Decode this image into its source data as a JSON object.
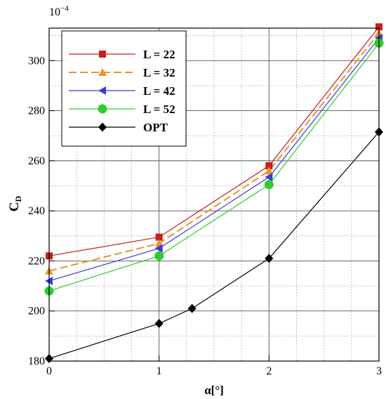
{
  "chart_data": {
    "type": "line",
    "xlabel": "α[°]",
    "ylabel_main": "C",
    "ylabel_sub": "D",
    "y_multiplier": "10",
    "y_multiplier_exp": "−4",
    "xlim": [
      0,
      3
    ],
    "ylim": [
      180,
      313
    ],
    "x_ticks": [
      0,
      1,
      2,
      3
    ],
    "y_ticks": [
      180,
      200,
      220,
      240,
      260,
      280,
      300
    ],
    "x_minor_step": 0.25,
    "y_minor_step": 10,
    "grid": true,
    "legend_position": "top-left",
    "series": [
      {
        "name": "L = 22",
        "color": "#c81e1e",
        "marker": "square",
        "dash": "solid",
        "x": [
          0,
          1,
          2,
          3
        ],
        "y": [
          222,
          229.5,
          258,
          313.5
        ]
      },
      {
        "name": "L = 32",
        "color": "#e8962a",
        "marker": "triangle",
        "dash": "dashed",
        "x": [
          0,
          1,
          2,
          3
        ],
        "y": [
          216,
          227,
          256,
          311
        ]
      },
      {
        "name": "L = 42",
        "color": "#3a3ae0",
        "marker": "triangle-left",
        "dash": "solid",
        "x": [
          0,
          1,
          2,
          3
        ],
        "y": [
          212,
          225,
          253.5,
          309
        ]
      },
      {
        "name": "L = 52",
        "color": "#2ecc2e",
        "marker": "circle",
        "dash": "solid",
        "x": [
          0,
          1,
          2,
          3
        ],
        "y": [
          208,
          222,
          250.5,
          307
        ]
      },
      {
        "name": "OPT",
        "color": "#000000",
        "marker": "diamond",
        "dash": "solid",
        "x": [
          0,
          1,
          1.3,
          2,
          3
        ],
        "y": [
          181,
          195,
          201,
          221,
          271.5
        ]
      }
    ]
  }
}
